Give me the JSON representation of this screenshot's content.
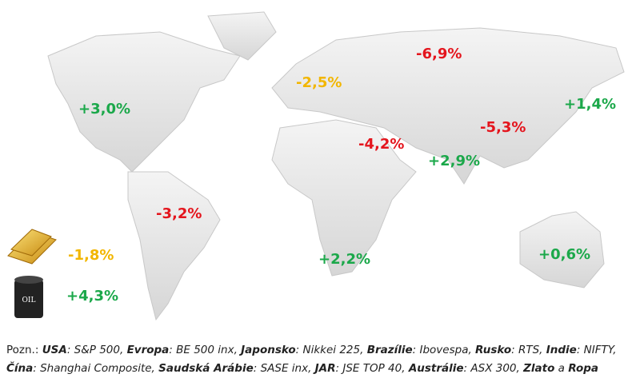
{
  "labels": [
    {
      "text": "+3,0%",
      "color": "#1ba84a"
    },
    {
      "text": "-2,5%",
      "color": "#f2b600"
    },
    {
      "text": "-6,9%",
      "color": "#e4151d"
    },
    {
      "text": "+1,4%",
      "color": "#1ba84a"
    },
    {
      "text": "-5,3%",
      "color": "#e4151d"
    },
    {
      "text": "-4,2%",
      "color": "#e4151d"
    },
    {
      "text": "+2,9%",
      "color": "#1ba84a"
    },
    {
      "text": "-3,2%",
      "color": "#e4151d"
    },
    {
      "text": "+2,2%",
      "color": "#1ba84a"
    },
    {
      "text": "+0,6%",
      "color": "#1ba84a"
    },
    {
      "text": "-1,8%",
      "color": "#f2b600"
    },
    {
      "text": "+4,3%",
      "color": "#1ba84a"
    }
  ],
  "note": {
    "lines": [
      [
        {
          "text": "Pozn.: ",
          "style": "plain"
        },
        {
          "text": "USA",
          "style": "bold-italic"
        },
        {
          "text": ": S&P 500, ",
          "style": "italic"
        },
        {
          "text": "Evropa",
          "style": "bold-italic"
        },
        {
          "text": ": BE 500 inx, ",
          "style": "italic"
        },
        {
          "text": "Japonsko",
          "style": "bold-italic"
        },
        {
          "text": ": Nikkei 225, ",
          "style": "italic"
        },
        {
          "text": "Brazílie",
          "style": "bold-italic"
        },
        {
          "text": ": Ibovespa, ",
          "style": "italic"
        },
        {
          "text": "Rusko",
          "style": "bold-italic"
        },
        {
          "text": ": RTS, ",
          "style": "italic"
        },
        {
          "text": "Indie",
          "style": "bold-italic"
        },
        {
          "text": ": NIFTY,",
          "style": "italic"
        }
      ],
      [
        {
          "text": "Čína",
          "style": "bold-italic"
        },
        {
          "text": ": Shanghai Composite, ",
          "style": "italic"
        },
        {
          "text": "Saudská Arábie",
          "style": "bold-italic"
        },
        {
          "text": ": SASE inx, ",
          "style": "italic"
        },
        {
          "text": "JAR",
          "style": "bold-italic"
        },
        {
          "text": ": JSE TOP 40, ",
          "style": "italic"
        },
        {
          "text": "Austrálie",
          "style": "bold-italic"
        },
        {
          "text": ": ASX 300, ",
          "style": "italic"
        },
        {
          "text": "Zlato",
          "style": "bold-italic"
        },
        {
          "text": " a ",
          "style": "italic"
        },
        {
          "text": "Ropa",
          "style": "bold-italic"
        }
      ]
    ]
  }
}
